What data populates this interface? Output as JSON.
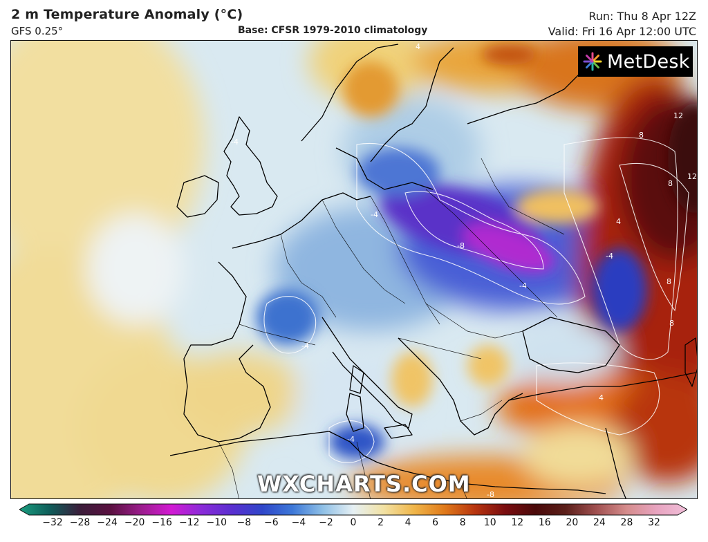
{
  "header": {
    "title": "2 m Temperature Anomaly (°C)",
    "model": "GFS 0.25°",
    "base": "Base: CFSR 1979-2010 climatology",
    "run": "Run: Thu 8 Apr 12Z",
    "valid": "Valid: Fri 16 Apr 12:00 UTC"
  },
  "logo": {
    "text": "MetDesk",
    "icon": "starburst-logo-icon"
  },
  "watermark": "WXCHARTS.COM",
  "colorbar": {
    "ticks": [
      "−32",
      "−28",
      "−24",
      "−20",
      "−16",
      "−12",
      "−10",
      "−8",
      "−6",
      "−4",
      "−2",
      "0",
      "2",
      "4",
      "6",
      "8",
      "10",
      "12",
      "16",
      "20",
      "24",
      "28",
      "32"
    ],
    "colors": [
      "#1a9e7f",
      "#0f5d5a",
      "#3a1d3a",
      "#5a1040",
      "#9a1d8c",
      "#d21ad3",
      "#8a2bd8",
      "#5a2fd0",
      "#2f46c9",
      "#3d78d8",
      "#8fc0e6",
      "#e6f0f4",
      "#f2e2a4",
      "#f0b64a",
      "#e07a1a",
      "#b8350f",
      "#7a0d10",
      "#4a0a0a",
      "#5b1f1a",
      "#a05050",
      "#d58c8c",
      "#e8a4c0",
      "#f1bfd9"
    ]
  },
  "contour_labels": [
    "-4",
    "-4",
    "-8",
    "-4",
    "-4",
    "-4",
    "4",
    "4",
    "8",
    "8",
    "12",
    "12",
    "8",
    "4",
    "-8",
    "8",
    "-4"
  ]
}
